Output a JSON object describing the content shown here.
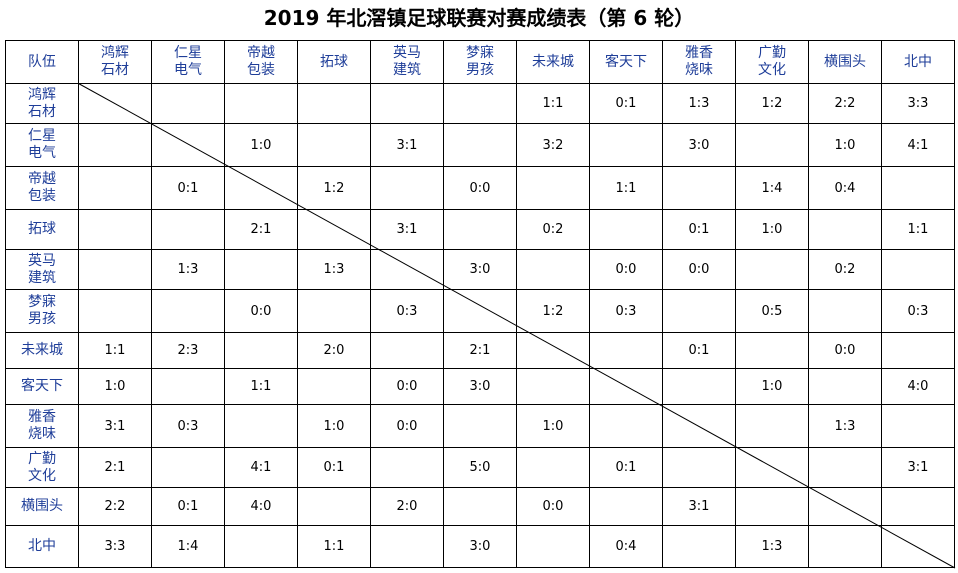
{
  "title": "2019 年北滘镇足球联赛对赛成绩表（第 6 轮）",
  "corner_label": "队伍",
  "teams": [
    "鸿辉\n石材",
    "仁星\n电气",
    "帝越\n包装",
    "拓球",
    "英马\n建筑",
    "梦寐\n男孩",
    "未来城",
    "客天下",
    "雅香\n烧味",
    "广勤\n文化",
    "横围头",
    "北中"
  ],
  "header_color": "#1f3e99",
  "scores": [
    [
      "",
      "",
      "",
      "",
      "",
      "",
      "1:1",
      "0:1",
      "1:3",
      "1:2",
      "2:2",
      "3:3"
    ],
    [
      "",
      "",
      "1:0",
      "",
      "3:1",
      "",
      "3:2",
      "",
      "3:0",
      "",
      "1:0",
      "4:1"
    ],
    [
      "",
      "0:1",
      "",
      "1:2",
      "",
      "0:0",
      "",
      "1:1",
      "",
      "1:4",
      "0:4",
      ""
    ],
    [
      "",
      "",
      "2:1",
      "",
      "3:1",
      "",
      "0:2",
      "",
      "0:1",
      "1:0",
      "",
      "1:1"
    ],
    [
      "",
      "1:3",
      "",
      "1:3",
      "",
      "3:0",
      "",
      "0:0",
      "0:0",
      "",
      "0:2",
      ""
    ],
    [
      "",
      "",
      "0:0",
      "",
      "0:3",
      "",
      "1:2",
      "0:3",
      "",
      "0:5",
      "",
      "0:3"
    ],
    [
      "1:1",
      "2:3",
      "",
      "2:0",
      "",
      "2:1",
      "",
      "",
      "0:1",
      "",
      "0:0",
      ""
    ],
    [
      "1:0",
      "",
      "1:1",
      "",
      "0:0",
      "3:0",
      "",
      "",
      "",
      "1:0",
      "",
      "4:0"
    ],
    [
      "3:1",
      "0:3",
      "",
      "1:0",
      "0:0",
      "",
      "1:0",
      "",
      "",
      "",
      "1:3",
      ""
    ],
    [
      "2:1",
      "",
      "4:1",
      "0:1",
      "",
      "5:0",
      "",
      "0:1",
      "",
      "",
      "",
      "3:1"
    ],
    [
      "2:2",
      "0:1",
      "4:0",
      "",
      "2:0",
      "",
      "0:0",
      "",
      "3:1",
      "",
      "",
      ""
    ],
    [
      "3:3",
      "1:4",
      "",
      "1:1",
      "",
      "3:0",
      "",
      "0:4",
      "",
      "1:3",
      "",
      ""
    ]
  ]
}
